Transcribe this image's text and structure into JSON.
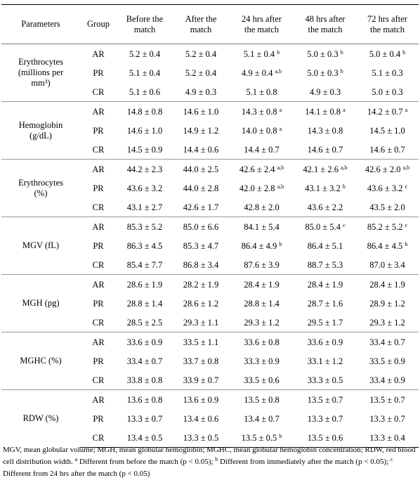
{
  "table": {
    "header": [
      [
        "Parameters"
      ],
      [
        "Group"
      ],
      [
        "Before the",
        "match"
      ],
      [
        "After the",
        "match"
      ],
      [
        "24 hrs after",
        "the match"
      ],
      [
        "48 hrs after",
        "the match"
      ],
      [
        "72 hrs after",
        "the match"
      ]
    ],
    "groups": [
      {
        "parameter": [
          "Erythrocytes",
          "(millions per",
          "mm³)"
        ],
        "rows": [
          {
            "group": "AR",
            "cells": [
              {
                "value": "5.2 ± 0.4"
              },
              {
                "value": "5.2 ± 0.4"
              },
              {
                "value": "5.1 ± 0.4",
                "sup": "b"
              },
              {
                "value": "5.0 ± 0.3",
                "sup": "b"
              },
              {
                "value": "5.0 ± 0.4",
                "sup": "b"
              }
            ]
          },
          {
            "group": "PR",
            "cells": [
              {
                "value": "5.1 ± 0.4"
              },
              {
                "value": "5.2 ± 0.4"
              },
              {
                "value": "4.9 ± 0.4",
                "sup": "a,b"
              },
              {
                "value": "5.0 ± 0.3",
                "sup": "b"
              },
              {
                "value": "5.1 ± 0.3"
              }
            ]
          },
          {
            "group": "CR",
            "cells": [
              {
                "value": "5.1 ± 0.6"
              },
              {
                "value": "4.9 ± 0.3"
              },
              {
                "value": "5.1 ± 0.8"
              },
              {
                "value": "4.9 ± 0.3"
              },
              {
                "value": "5.0 ± 0.3"
              }
            ]
          }
        ]
      },
      {
        "parameter": [
          "Hemoglobin",
          "(g/dL)"
        ],
        "rows": [
          {
            "group": "AR",
            "cells": [
              {
                "value": "14.8 ± 0.8"
              },
              {
                "value": "14.6 ± 1.0"
              },
              {
                "value": "14.3 ± 0.8",
                "sup": "a"
              },
              {
                "value": "14.1 ± 0.8",
                "sup": "a"
              },
              {
                "value": "14.2 ± 0.7",
                "sup": "a"
              }
            ]
          },
          {
            "group": "PR",
            "cells": [
              {
                "value": "14.6 ± 1.0"
              },
              {
                "value": "14.9 ± 1.2"
              },
              {
                "value": "14.0 ± 0.8",
                "sup": "a"
              },
              {
                "value": "14.3 ± 0.8"
              },
              {
                "value": "14.5 ± 1.0"
              }
            ]
          },
          {
            "group": "CR",
            "cells": [
              {
                "value": "14.5 ± 0.9"
              },
              {
                "value": "14.4 ± 0.6"
              },
              {
                "value": "14.4 ± 0.7"
              },
              {
                "value": "14.6 ± 0.7"
              },
              {
                "value": "14.6 ± 0.7"
              }
            ]
          }
        ]
      },
      {
        "parameter": [
          "Erythrocytes",
          "(%)"
        ],
        "rows": [
          {
            "group": "AR",
            "cells": [
              {
                "value": "44.2 ± 2.3"
              },
              {
                "value": "44.0 ± 2.5"
              },
              {
                "value": "42.6 ± 2.4",
                "sup": "a,b"
              },
              {
                "value": "42.1 ± 2.6",
                "sup": "a,b"
              },
              {
                "value": "42.6 ± 2.0",
                "sup": "a,b"
              }
            ]
          },
          {
            "group": "PR",
            "cells": [
              {
                "value": "43.6 ± 3.2"
              },
              {
                "value": "44.0 ± 2.8"
              },
              {
                "value": "42.0 ± 2.8",
                "sup": "a,b"
              },
              {
                "value": "43.1 ± 3.2",
                "sup": "b"
              },
              {
                "value": "43.6 ± 3.2",
                "sup": "c"
              }
            ]
          },
          {
            "group": "CR",
            "cells": [
              {
                "value": "43.1 ± 2.7"
              },
              {
                "value": "42.6 ± 1.7"
              },
              {
                "value": "42.8 ± 2.0"
              },
              {
                "value": "43.6 ± 2.2"
              },
              {
                "value": "43.5 ± 2.0"
              }
            ]
          }
        ]
      },
      {
        "parameter": [
          "MGV (fL)"
        ],
        "rows": [
          {
            "group": "AR",
            "cells": [
              {
                "value": "85.3 ± 5.2"
              },
              {
                "value": "85.0 ± 6.6"
              },
              {
                "value": "84.1 ± 5.4"
              },
              {
                "value": "85.0 ± 5.4",
                "sup": "c"
              },
              {
                "value": "85.2 ± 5.2",
                "sup": "c"
              }
            ]
          },
          {
            "group": "PR",
            "cells": [
              {
                "value": "86.3 ± 4.5"
              },
              {
                "value": "85.3 ± 4.7"
              },
              {
                "value": "86.4 ± 4.9",
                "sup": "b"
              },
              {
                "value": "86.4 ± 5.1"
              },
              {
                "value": "86.4 ± 4.5",
                "sup": "b"
              }
            ]
          },
          {
            "group": "CR",
            "cells": [
              {
                "value": "85.4 ± 7.7"
              },
              {
                "value": "86.8 ± 3.4"
              },
              {
                "value": "87.6 ± 3.9"
              },
              {
                "value": "88.7 ± 5.3"
              },
              {
                "value": "87.0 ± 3.4"
              }
            ]
          }
        ]
      },
      {
        "parameter": [
          "MGH (pg)"
        ],
        "rows": [
          {
            "group": "AR",
            "cells": [
              {
                "value": "28.6 ± 1.9"
              },
              {
                "value": "28.2 ± 1.9"
              },
              {
                "value": "28.4 ± 1.9"
              },
              {
                "value": "28.4 ± 1.9"
              },
              {
                "value": "28.4 ± 1.9"
              }
            ]
          },
          {
            "group": "PR",
            "cells": [
              {
                "value": "28.8 ± 1.4"
              },
              {
                "value": "28.6 ± 1.2"
              },
              {
                "value": "28.8 ± 1.4"
              },
              {
                "value": "28.7 ± 1.6"
              },
              {
                "value": "28.9 ± 1.2"
              }
            ]
          },
          {
            "group": "CR",
            "cells": [
              {
                "value": "28.5 ± 2.5"
              },
              {
                "value": "29.3 ± 1.1"
              },
              {
                "value": "29.3 ± 1.2"
              },
              {
                "value": "29.5 ± 1.7"
              },
              {
                "value": "29.3 ± 1.2"
              }
            ]
          }
        ]
      },
      {
        "parameter": [
          "MGHC (%)"
        ],
        "rows": [
          {
            "group": "AR",
            "cells": [
              {
                "value": "33.6 ± 0.9"
              },
              {
                "value": "33.5 ± 1.1"
              },
              {
                "value": "33.6 ± 0.8"
              },
              {
                "value": "33.6 ± 0.9"
              },
              {
                "value": "33.4 ± 0.7"
              }
            ]
          },
          {
            "group": "PR",
            "cells": [
              {
                "value": "33.4 ± 0.7"
              },
              {
                "value": "33.7 ± 0.8"
              },
              {
                "value": "33.3 ± 0.9"
              },
              {
                "value": "33.1 ± 1.2"
              },
              {
                "value": "33.5 ± 0.9"
              }
            ]
          },
          {
            "group": "CR",
            "cells": [
              {
                "value": "33.8 ± 0.8"
              },
              {
                "value": "33.9 ± 0.7"
              },
              {
                "value": "33.5 ± 0.6"
              },
              {
                "value": "33.3 ± 0.5"
              },
              {
                "value": "33.4 ± 0.9"
              }
            ]
          }
        ]
      },
      {
        "parameter": [
          "RDW (%)"
        ],
        "rows": [
          {
            "group": "AR",
            "cells": [
              {
                "value": "13.6 ± 0.8"
              },
              {
                "value": "13.6 ± 0.9"
              },
              {
                "value": "13.5 ± 0.8"
              },
              {
                "value": "13.5 ± 0.7"
              },
              {
                "value": "13.5 ± 0.7"
              }
            ]
          },
          {
            "group": "PR",
            "cells": [
              {
                "value": "13.3 ± 0.7"
              },
              {
                "value": "13.4 ± 0.6"
              },
              {
                "value": "13.4 ± 0.7"
              },
              {
                "value": "13.3 ± 0.7"
              },
              {
                "value": "13.3 ± 0.7"
              }
            ]
          },
          {
            "group": "CR",
            "cells": [
              {
                "value": "13.4 ± 0.5"
              },
              {
                "value": "13.3 ± 0.5"
              },
              {
                "value": "13.5 ± 0.5",
                "sup": "b"
              },
              {
                "value": "13.5 ± 0.6"
              },
              {
                "value": "13.3 ± 0.4"
              }
            ]
          }
        ]
      }
    ]
  },
  "footnote": [
    {
      "text": "MGV, mean globular volume; MGH, mean globular hemoglobin; MGHC, mean globular hemoglobin concentration; RDW, red blood cell distribution width. "
    },
    {
      "sup": "a"
    },
    {
      "text": " Different from before the match (p < 0.05); "
    },
    {
      "sup": "b"
    },
    {
      "text": " Different from immediately after the match (p < 0.05); "
    },
    {
      "sup": "c"
    },
    {
      "text": " Different from 24 hrs after the match (p < 0.05)"
    }
  ]
}
